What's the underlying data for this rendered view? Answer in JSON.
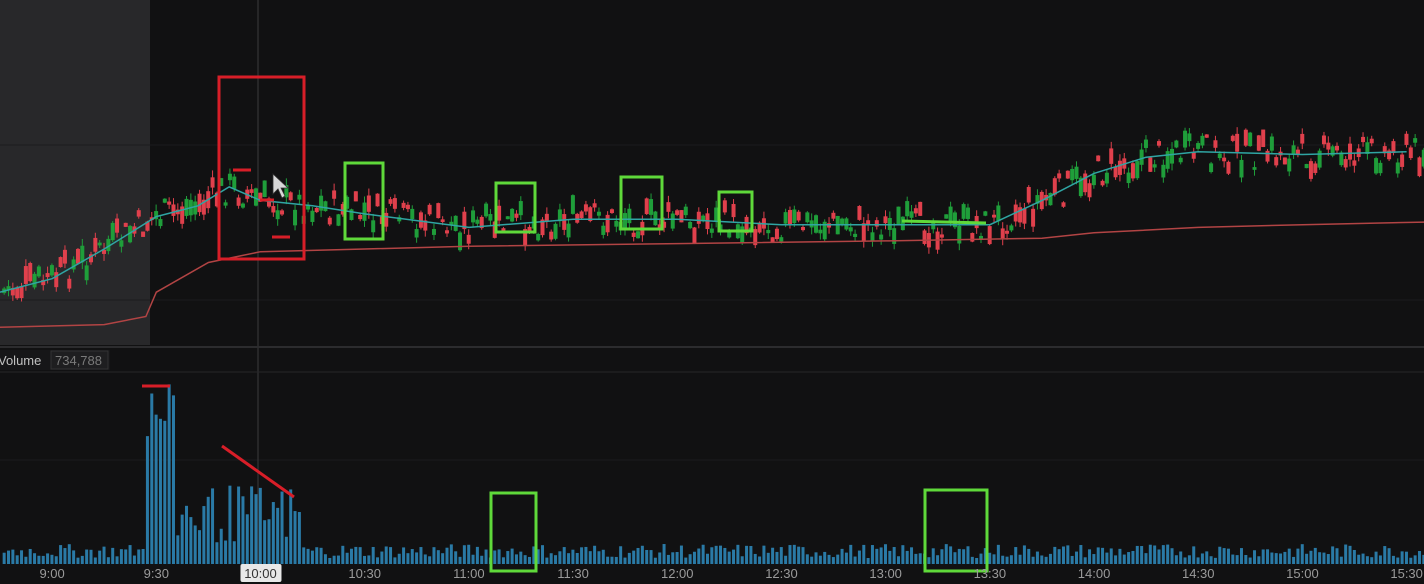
{
  "chart_data": [
    {
      "type": "candlestick",
      "panel": "price",
      "x_start": "8:45",
      "x_end": "15:35",
      "premarket_end": "9:30",
      "colors": {
        "up": "#1f9e3a",
        "down": "#e0404c",
        "ema": "#2fa5a3",
        "vwap": "#b24444",
        "premarket_bg": "#2a2a2c",
        "annotation_red": "#d81e28",
        "annotation_green": "#5fd93a"
      },
      "ema": [
        [
          8.75,
          0.86
        ],
        [
          9.0,
          0.81
        ],
        [
          9.25,
          0.7
        ],
        [
          9.5,
          0.58
        ],
        [
          9.7,
          0.54
        ],
        [
          9.85,
          0.47
        ],
        [
          10.0,
          0.52
        ],
        [
          10.25,
          0.54
        ],
        [
          10.5,
          0.57
        ],
        [
          11.0,
          0.62
        ],
        [
          11.5,
          0.59
        ],
        [
          12.0,
          0.59
        ],
        [
          12.5,
          0.61
        ],
        [
          13.0,
          0.61
        ],
        [
          13.5,
          0.61
        ],
        [
          13.75,
          0.52
        ],
        [
          14.0,
          0.42
        ],
        [
          14.25,
          0.36
        ],
        [
          14.5,
          0.34
        ],
        [
          15.0,
          0.35
        ],
        [
          15.5,
          0.34
        ]
      ],
      "vwap": [
        [
          8.75,
          0.99
        ],
        [
          9.25,
          0.98
        ],
        [
          9.45,
          0.95
        ],
        [
          9.5,
          0.86
        ],
        [
          9.75,
          0.75
        ],
        [
          10.0,
          0.71
        ],
        [
          10.5,
          0.7
        ],
        [
          11.0,
          0.69
        ],
        [
          12.0,
          0.68
        ],
        [
          13.0,
          0.67
        ],
        [
          13.75,
          0.66
        ],
        [
          14.0,
          0.64
        ],
        [
          14.5,
          0.62
        ],
        [
          15.0,
          0.61
        ],
        [
          15.6,
          0.6
        ]
      ]
    },
    {
      "type": "bar",
      "panel": "volume",
      "title": "Volume",
      "last_value": "734,788",
      "x_ticks": [
        "9:00",
        "9:30",
        "10:00",
        "10:30",
        "11:00",
        "11:30",
        "12:00",
        "12:30",
        "13:00",
        "13:30",
        "14:00",
        "14:30",
        "15:00",
        "15:30"
      ],
      "highlighted_tick": "10:00",
      "color": "#2a7aa6"
    }
  ]
}
